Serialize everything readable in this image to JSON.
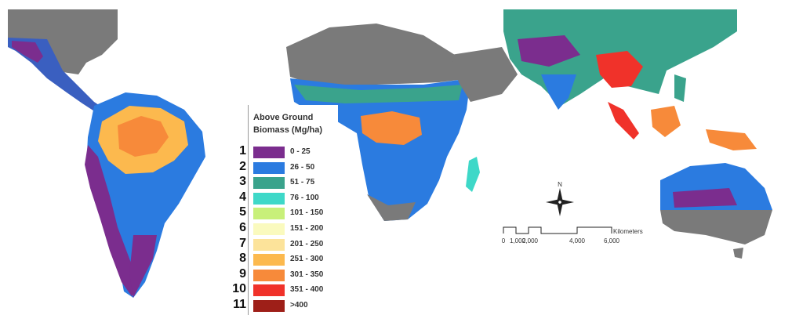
{
  "legend": {
    "title": "Above Ground Biomass (Mg/ha)",
    "classes": [
      {
        "num": "1",
        "label": "0 - 25",
        "color": "#7b2d8e"
      },
      {
        "num": "2",
        "label": "26 - 50",
        "color": "#2b7be0"
      },
      {
        "num": "3",
        "label": "51 - 75",
        "color": "#3aa38c"
      },
      {
        "num": "4",
        "label": "76 - 100",
        "color": "#3ed8c8"
      },
      {
        "num": "5",
        "label": "101 - 150",
        "color": "#c8f07a"
      },
      {
        "num": "6",
        "label": "151 - 200",
        "color": "#fafabe"
      },
      {
        "num": "7",
        "label": "201 - 250",
        "color": "#fce39a"
      },
      {
        "num": "8",
        "label": "251 - 300",
        "color": "#fcb94e"
      },
      {
        "num": "9",
        "label": "301 - 350",
        "color": "#f78a3a"
      },
      {
        "num": "10",
        "label": "351 - 400",
        "color": "#f0322a"
      },
      {
        "num": "11",
        "label": ">400",
        "color": "#9e1f18"
      }
    ]
  },
  "compass": {
    "north_label": "N"
  },
  "scale_bar": {
    "unit": "Kilometers",
    "ticks": [
      "0",
      "1,000",
      "2,000",
      "4,000",
      "6,000"
    ]
  }
}
